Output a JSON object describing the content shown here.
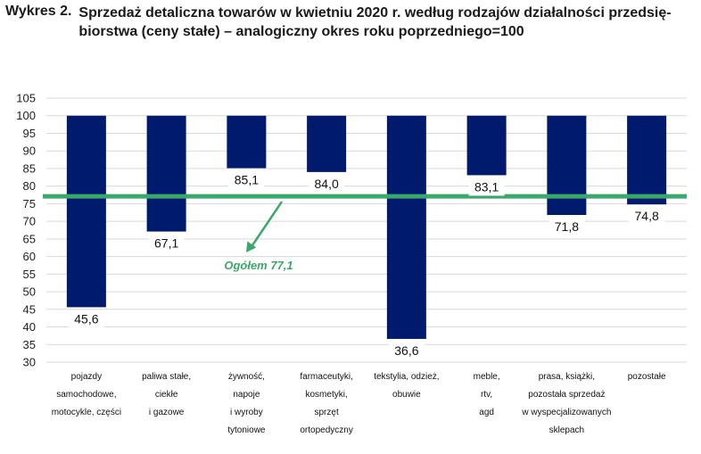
{
  "title": {
    "prefix": "Wykres 2.",
    "text": "Sprzedaż detaliczna towarów w kwietniu 2020 r. według rodzajów działalności przedsię-biorstwa (ceny stałe) – analogiczny okres roku poprzedniego=100"
  },
  "colors": {
    "bar": "#001a6e",
    "total_line": "#3aa86b",
    "grid": "#d9d9d9"
  },
  "chart_data": {
    "type": "bar",
    "baseline": 100,
    "ylim": [
      30,
      105
    ],
    "yticks": [
      "105",
      "100",
      "95",
      "90",
      "85",
      "80",
      "75",
      "70",
      "65",
      "60",
      "55",
      "50",
      "45",
      "40",
      "35",
      "30"
    ],
    "grid": true,
    "categories": [
      [
        "pojazdy",
        "samochodowe,",
        "motocykle, części"
      ],
      [
        "paliwa stałe,",
        "ciekłe",
        "i gazowe"
      ],
      [
        "żywność,",
        "napoje",
        "i wyroby",
        "tytoniowe"
      ],
      [
        "farmaceutyki,",
        "kosmetyki,",
        "sprzęt",
        "ortopedyczny"
      ],
      [
        "tekstylia, odzież,",
        "obuwie"
      ],
      [
        "meble,",
        "rtv,",
        "agd"
      ],
      [
        "prasa, książki,",
        "pozostała sprzedaż",
        "w wyspecjalizowanych",
        "sklepach"
      ],
      [
        "pozostałe"
      ]
    ],
    "values": [
      45.6,
      67.1,
      85.1,
      84.0,
      36.6,
      83.1,
      71.8,
      74.8
    ],
    "value_labels": [
      "45,6",
      "67,1",
      "85,1",
      "84,0",
      "36,6",
      "83,1",
      "71,8",
      "74,8"
    ],
    "total": {
      "value": 77.1,
      "label": "Ogółem 77,1"
    }
  }
}
